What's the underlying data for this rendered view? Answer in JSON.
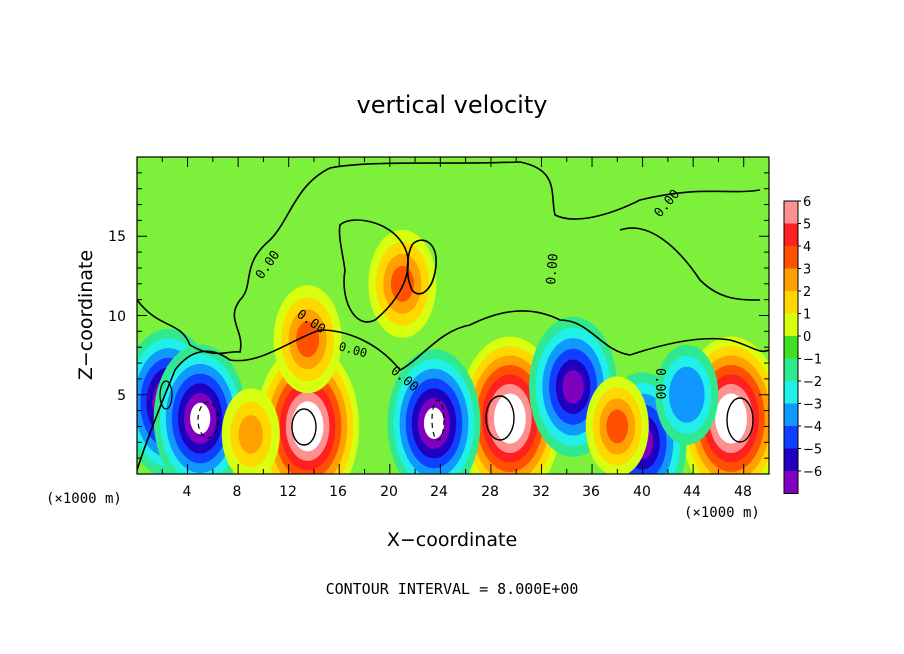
{
  "chart_data": {
    "type": "heatmap",
    "title": "vertical velocity",
    "xlabel": "X−coordinate",
    "ylabel": "Z−coordinate",
    "x_unit_left": "(×1000 m)",
    "x_unit_right": "(×1000 m)",
    "xlim": [
      0,
      50
    ],
    "ylim": [
      0,
      20
    ],
    "x_ticks": [
      "4",
      "8",
      "12",
      "16",
      "20",
      "24",
      "28",
      "32",
      "36",
      "40",
      "44",
      "48"
    ],
    "x_tick_values": [
      4,
      8,
      12,
      16,
      20,
      24,
      28,
      32,
      36,
      40,
      44,
      48
    ],
    "y_ticks": [
      "5",
      "10",
      "15"
    ],
    "y_tick_values": [
      5,
      10,
      15
    ],
    "colorbar": {
      "labels": [
        "6",
        "5",
        "4",
        "3",
        "2",
        "1",
        "0",
        "−1",
        "−2",
        "−3",
        "−4",
        "−5",
        "−6"
      ],
      "values": [
        6,
        5,
        4,
        3,
        2,
        1,
        0,
        -1,
        -2,
        -3,
        -4,
        -5,
        -6
      ],
      "colors": [
        "#ff9090",
        "#ff2020",
        "#ff5000",
        "#ffa000",
        "#ffd800",
        "#d8ff10",
        "#40e020",
        "#30e890",
        "#20f0e8",
        "#1098ff",
        "#1040ff",
        "#2000c0",
        "#8000c0"
      ]
    },
    "contour_labels": [
      "0.00",
      "0.00",
      "0.00",
      "0.00",
      "0.00",
      "0.00",
      "0.00"
    ],
    "footer": "CONTOUR INTERVAL = 8.000E+00",
    "features": [
      {
        "x": 13.5,
        "z": 3.0,
        "w": 7.5
      },
      {
        "x": 29.5,
        "z": 3.5,
        "w": 7.5
      },
      {
        "x": 47.0,
        "z": 3.5,
        "w": 7.5
      },
      {
        "x": 2.5,
        "z": 4.5,
        "w": -6.5
      },
      {
        "x": 5.0,
        "z": 3.5,
        "w": -6.5
      },
      {
        "x": 23.5,
        "z": 3.2,
        "w": -6.5
      },
      {
        "x": 34.5,
        "z": 5.5,
        "w": -6.0
      },
      {
        "x": 40.0,
        "z": 2.0,
        "w": -6.0
      },
      {
        "x": 21.0,
        "z": 12.0,
        "w": 4.0
      },
      {
        "x": 13.5,
        "z": 8.5,
        "w": 4.0
      },
      {
        "x": 38.0,
        "z": 3.0,
        "w": 3.5
      },
      {
        "x": 9.0,
        "z": 2.5,
        "w": 3.0
      },
      {
        "x": 43.5,
        "z": 5.0,
        "w": -3.5
      }
    ]
  }
}
